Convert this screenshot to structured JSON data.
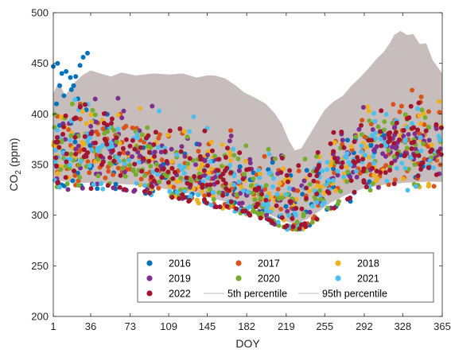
{
  "chart_data": {
    "type": "scatter",
    "title": "",
    "xlabel": "DOY",
    "ylabel_main": "CO",
    "ylabel_sub": "2",
    "ylabel_unit": " (ppm)",
    "xlim": [
      1,
      365
    ],
    "ylim": [
      200,
      500
    ],
    "xticks": [
      1,
      36,
      73,
      109,
      145,
      182,
      219,
      255,
      292,
      328,
      365
    ],
    "yticks": [
      200,
      250,
      300,
      350,
      400,
      450,
      500
    ],
    "grid": false,
    "legend_position": "bottom-center",
    "band": {
      "color": "#c3b7b7",
      "p5": [
        [
          1,
          335
        ],
        [
          20,
          332
        ],
        [
          40,
          332
        ],
        [
          60,
          331
        ],
        [
          80,
          330
        ],
        [
          100,
          327
        ],
        [
          120,
          323
        ],
        [
          140,
          319
        ],
        [
          160,
          314
        ],
        [
          180,
          309
        ],
        [
          195,
          305
        ],
        [
          205,
          300
        ],
        [
          215,
          295
        ],
        [
          225,
          292
        ],
        [
          232,
          293
        ],
        [
          240,
          297
        ],
        [
          250,
          304
        ],
        [
          260,
          312
        ],
        [
          275,
          320
        ],
        [
          290,
          326
        ],
        [
          310,
          330
        ],
        [
          330,
          332
        ],
        [
          350,
          333
        ],
        [
          365,
          333
        ]
      ],
      "p95": [
        [
          1,
          420
        ],
        [
          6,
          432
        ],
        [
          12,
          418
        ],
        [
          20,
          430
        ],
        [
          28,
          438
        ],
        [
          36,
          443
        ],
        [
          45,
          440
        ],
        [
          55,
          437
        ],
        [
          65,
          441
        ],
        [
          78,
          438
        ],
        [
          95,
          440
        ],
        [
          110,
          439
        ],
        [
          122,
          440
        ],
        [
          135,
          436
        ],
        [
          145,
          438
        ],
        [
          152,
          438
        ],
        [
          162,
          435
        ],
        [
          172,
          428
        ],
        [
          180,
          421
        ],
        [
          190,
          416
        ],
        [
          200,
          410
        ],
        [
          208,
          401
        ],
        [
          215,
          390
        ],
        [
          221,
          375
        ],
        [
          227,
          364
        ],
        [
          233,
          366
        ],
        [
          240,
          378
        ],
        [
          248,
          392
        ],
        [
          255,
          404
        ],
        [
          263,
          412
        ],
        [
          272,
          418
        ],
        [
          280,
          428
        ],
        [
          288,
          436
        ],
        [
          296,
          445
        ],
        [
          304,
          455
        ],
        [
          310,
          461
        ],
        [
          316,
          470
        ],
        [
          320,
          478
        ],
        [
          326,
          482
        ],
        [
          332,
          478
        ],
        [
          338,
          479
        ],
        [
          344,
          469
        ],
        [
          350,
          470
        ],
        [
          356,
          453
        ],
        [
          361,
          446
        ],
        [
          365,
          440
        ]
      ]
    },
    "series_names": [
      "2016",
      "2017",
      "2018",
      "2019",
      "2020",
      "2021",
      "2022",
      "5th percentile",
      "95th percentile"
    ],
    "series_colors": [
      "#0072bd",
      "#d95319",
      "#edb120",
      "#7e2f8e",
      "#77ac30",
      "#4dbeee",
      "#a2142f",
      "#bbbbbb",
      "#bbbbbb"
    ],
    "series_seeds": [
      11,
      23,
      37,
      41,
      53,
      67,
      79
    ],
    "series_counts": [
      110,
      200,
      200,
      200,
      200,
      200,
      260
    ],
    "seasonal_profile": [
      [
        1,
        367
      ],
      [
        30,
        366
      ],
      [
        60,
        360
      ],
      [
        90,
        352
      ],
      [
        120,
        344
      ],
      [
        150,
        336
      ],
      [
        180,
        326
      ],
      [
        200,
        315
      ],
      [
        215,
        307
      ],
      [
        225,
        301
      ],
      [
        235,
        305
      ],
      [
        250,
        326
      ],
      [
        270,
        346
      ],
      [
        290,
        358
      ],
      [
        310,
        365
      ],
      [
        330,
        370
      ],
      [
        350,
        368
      ],
      [
        365,
        365
      ]
    ],
    "early_outliers": [
      [
        1,
        447
      ],
      [
        5,
        450
      ],
      [
        9,
        440
      ],
      [
        13,
        442
      ],
      [
        17,
        436
      ],
      [
        20,
        428
      ],
      [
        22,
        437
      ],
      [
        26,
        448
      ],
      [
        29,
        456
      ],
      [
        33,
        460
      ],
      [
        4,
        410
      ],
      [
        11,
        418
      ],
      [
        18,
        424
      ],
      [
        7,
        428
      ],
      [
        24,
        415
      ]
    ]
  }
}
